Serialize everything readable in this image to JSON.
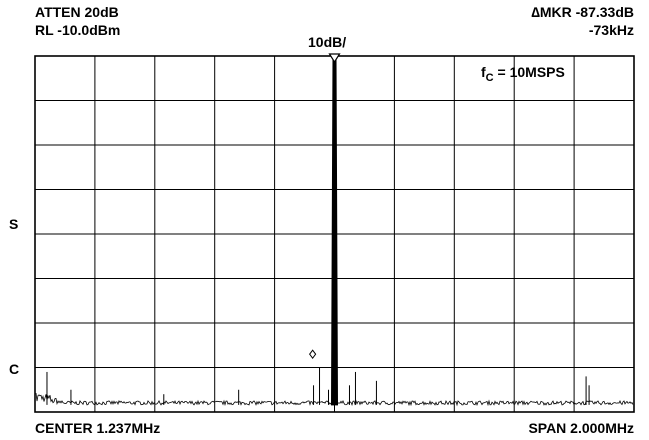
{
  "analyzer": {
    "atten": "ATTEN 20dB",
    "ref_level": "RL -10.0dBm",
    "scale": "10dB/",
    "marker_label": "MKR -87.33dB",
    "marker_freq": "-73kHz",
    "marker_delta_symbol": "∆",
    "center": "CENTER 1.237MHz",
    "span": "SPAN 2.000MHz",
    "side_label_s": "S",
    "side_label_c": "C"
  },
  "chart_data": {
    "type": "line",
    "title": "",
    "annotation": {
      "fc_prefix": "f",
      "fc_sub": "C",
      "fc_value": " = 10MSPS"
    },
    "center_mhz": 1.237,
    "span_mhz": 2.0,
    "ref_level_dbm": -10.0,
    "db_per_div": 10,
    "x_divisions": 10,
    "y_divisions": 8,
    "grid": true,
    "xlim_mhz": [
      0.237,
      2.237
    ],
    "ylim_dbm": [
      -90.0,
      -10.0
    ],
    "trace_color": "#000000",
    "carrier": {
      "x_mhz": 1.237,
      "level_dbm": -10.0
    },
    "marker": {
      "x_mhz": 1.164,
      "delta_db": -87.33,
      "delta_khz": -73
    },
    "spurs": [
      {
        "x_mhz": 0.277,
        "level_dbm": -81
      },
      {
        "x_mhz": 0.357,
        "level_dbm": -85
      },
      {
        "x_mhz": 0.667,
        "level_dbm": -86
      },
      {
        "x_mhz": 0.917,
        "level_dbm": -85
      },
      {
        "x_mhz": 1.167,
        "level_dbm": -84
      },
      {
        "x_mhz": 1.187,
        "level_dbm": -80
      },
      {
        "x_mhz": 1.217,
        "level_dbm": -85
      },
      {
        "x_mhz": 1.287,
        "level_dbm": -84
      },
      {
        "x_mhz": 1.307,
        "level_dbm": -81
      },
      {
        "x_mhz": 1.377,
        "level_dbm": -83
      },
      {
        "x_mhz": 2.077,
        "level_dbm": -82
      },
      {
        "x_mhz": 2.087,
        "level_dbm": -84
      }
    ]
  }
}
